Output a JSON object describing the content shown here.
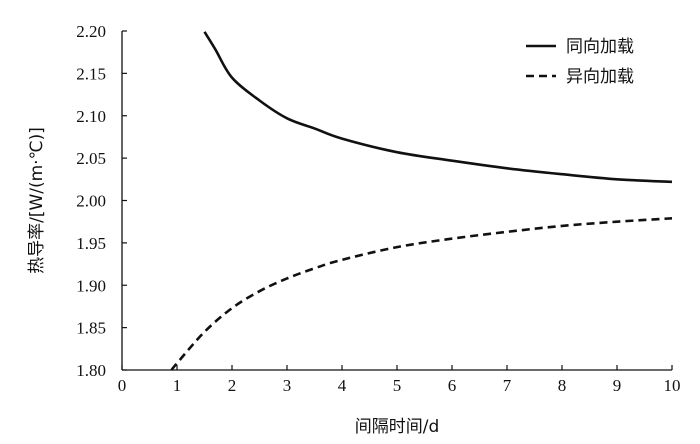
{
  "chart_data": {
    "type": "line",
    "xlabel": "间隔时间/d",
    "ylabel": "热导率/[W/(m·℃)]",
    "xlim": [
      0,
      10
    ],
    "ylim": [
      1.8,
      2.2
    ],
    "xticks": [
      "0",
      "1",
      "2",
      "3",
      "4",
      "5",
      "6",
      "7",
      "8",
      "9",
      "10"
    ],
    "yticks": [
      "1.80",
      "1.85",
      "1.90",
      "1.95",
      "2.00",
      "2.05",
      "2.10",
      "2.15",
      "2.20"
    ],
    "grid": false,
    "legend_position": "top-right",
    "series": [
      {
        "name": "同向加载",
        "line_style": "solid",
        "color": "#111111",
        "x": [
          1.5,
          1.7,
          2.0,
          2.5,
          3.0,
          3.5,
          4.0,
          5.0,
          6.0,
          7.0,
          8.0,
          9.0,
          10.0
        ],
        "y": [
          2.199,
          2.178,
          2.145,
          2.118,
          2.097,
          2.085,
          2.073,
          2.057,
          2.047,
          2.038,
          2.031,
          2.025,
          2.022
        ]
      },
      {
        "name": "异向加载",
        "line_style": "dashed",
        "color": "#111111",
        "x": [
          0.9,
          1.0,
          1.5,
          2.0,
          2.5,
          3.0,
          3.5,
          4.0,
          5.0,
          6.0,
          7.0,
          8.0,
          9.0,
          10.0
        ],
        "y": [
          1.8,
          1.808,
          1.845,
          1.873,
          1.893,
          1.908,
          1.92,
          1.93,
          1.945,
          1.955,
          1.963,
          1.97,
          1.975,
          1.979
        ]
      }
    ]
  }
}
